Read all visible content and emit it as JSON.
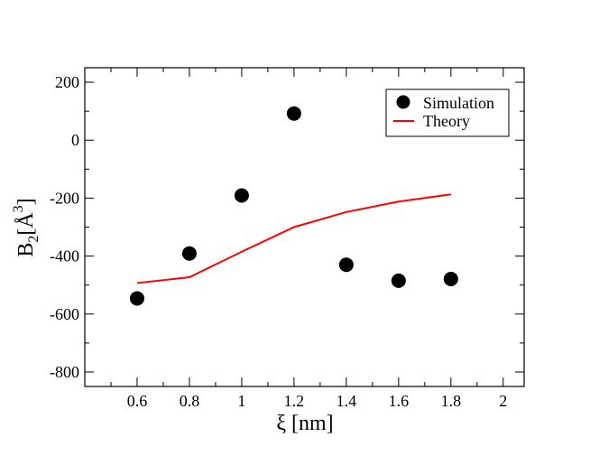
{
  "chart_data": {
    "type": "scatter",
    "xlabel": "ξ [nm]",
    "ylabel": {
      "base": "B",
      "subscript": "2",
      "bracket_open": "[",
      "unit": "Å",
      "superscript": "3",
      "bracket_close": "]"
    },
    "xlim": [
      0.4,
      2.08
    ],
    "ylim": [
      -850,
      250
    ],
    "x_ticks": [
      0.6,
      0.8,
      1.0,
      1.2,
      1.4,
      1.6,
      1.8,
      2.0
    ],
    "x_tick_labels": [
      "0.6",
      "0.8",
      "1",
      "1.2",
      "1.4",
      "1.6",
      "1.8",
      "2"
    ],
    "x_minor_step": 0.1,
    "y_ticks": [
      200,
      0,
      -200,
      -400,
      -600,
      -800
    ],
    "y_tick_labels": [
      "200",
      "0",
      "-200",
      "-400",
      "-600",
      "-800"
    ],
    "y_minor_step": 100,
    "legend_position": "top-right",
    "series": [
      {
        "name": "Simulation",
        "kind": "scatter",
        "color": "#000000",
        "x": [
          0.6,
          0.8,
          1.0,
          1.2,
          1.4,
          1.6,
          1.8
        ],
        "y": [
          -546,
          -391,
          -191,
          92,
          -430,
          -485,
          -479
        ]
      },
      {
        "name": "Theory",
        "kind": "line",
        "color": "#ff0000",
        "x": [
          0.6,
          0.8,
          1.0,
          1.2,
          1.4,
          1.6,
          1.8
        ],
        "y": [
          -493,
          -473,
          -385,
          -300,
          -248,
          -212,
          -187
        ]
      }
    ]
  }
}
